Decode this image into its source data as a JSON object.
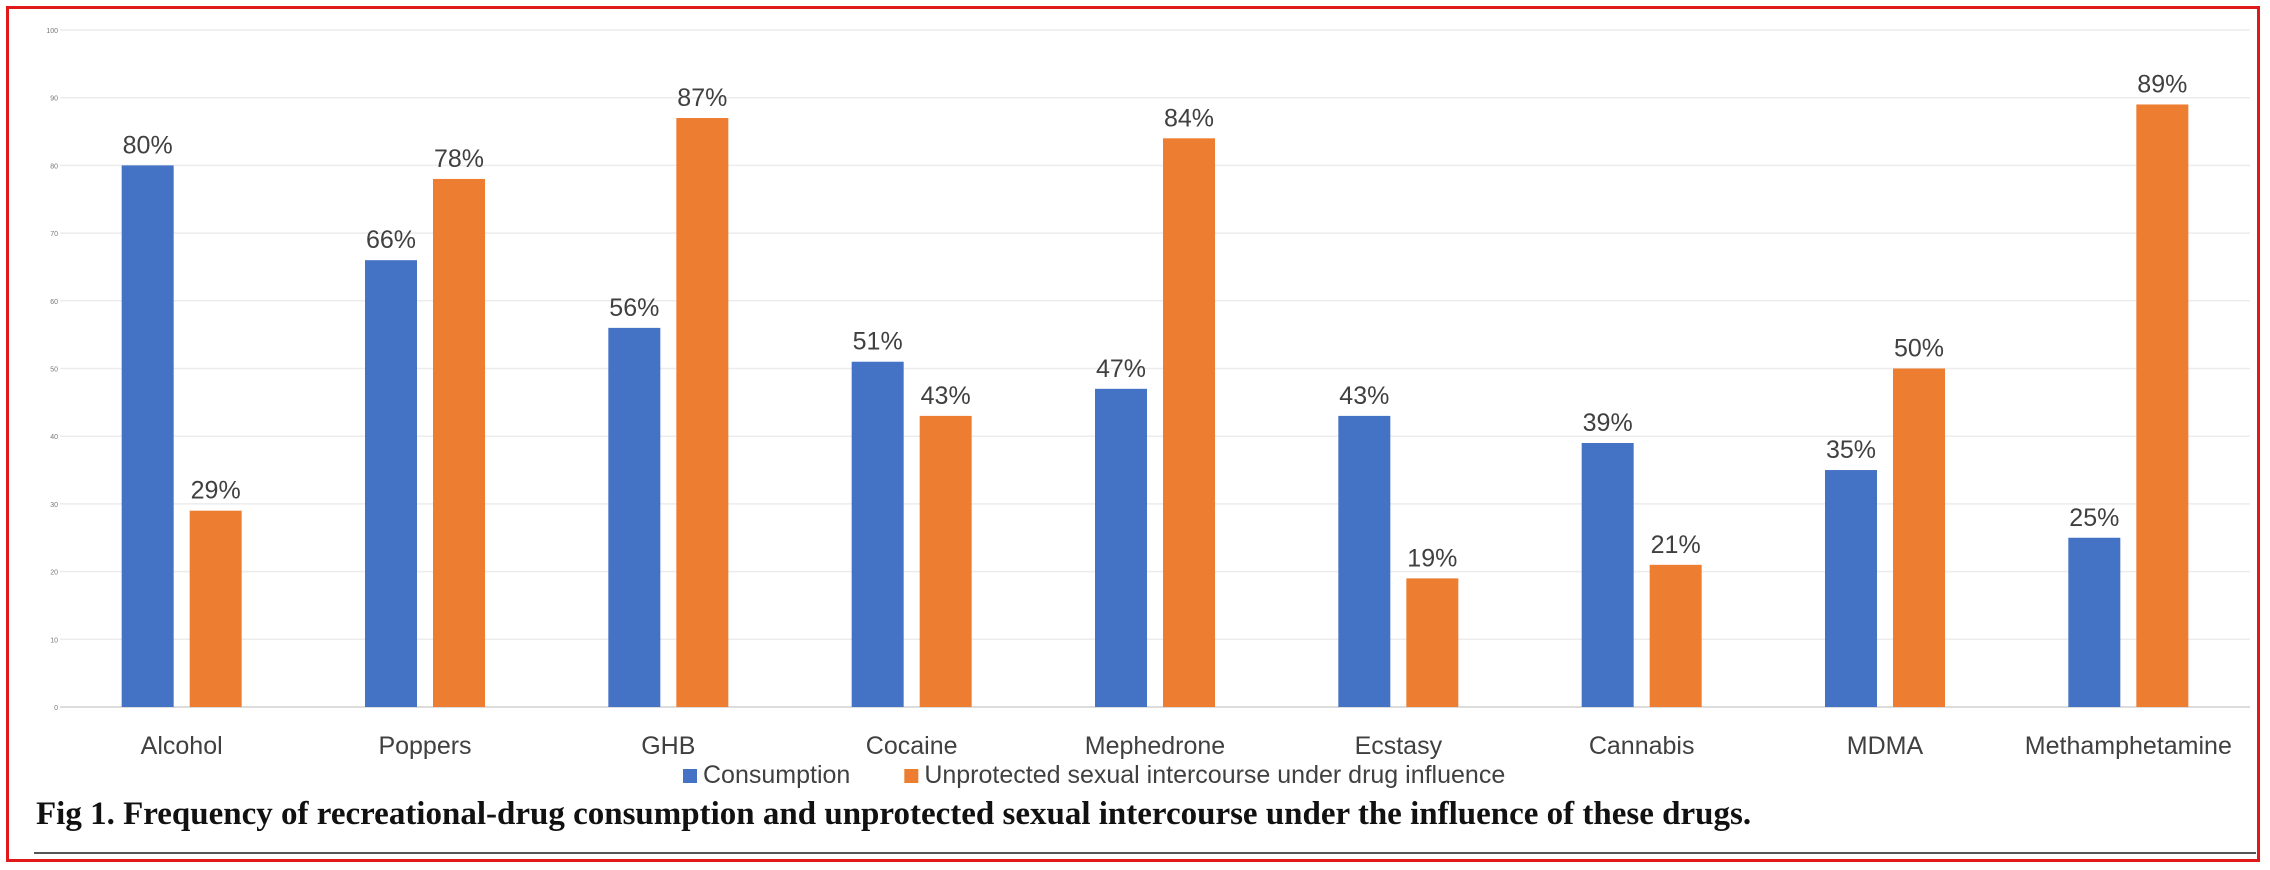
{
  "chart_data": {
    "type": "bar",
    "categories": [
      "Alcohol",
      "Poppers",
      "GHB",
      "Cocaine",
      "Mephedrone",
      "Ecstasy",
      "Cannabis",
      "MDMA",
      "Methamphetamine"
    ],
    "series": [
      {
        "name": "Consumption",
        "color": "#4472c4",
        "values": [
          80,
          66,
          56,
          51,
          47,
          43,
          39,
          35,
          25
        ]
      },
      {
        "name": "Unprotected sexual intercourse under drug influence",
        "color": "#ed7d31",
        "values": [
          29,
          78,
          87,
          43,
          84,
          19,
          21,
          50,
          89
        ]
      }
    ],
    "data_labels": [
      [
        "80%",
        "66%",
        "56%",
        "51%",
        "47%",
        "43%",
        "39%",
        "35%",
        "25%"
      ],
      [
        "29%",
        "78%",
        "87%",
        "43%",
        "84%",
        "19%",
        "21%",
        "50%",
        "89%"
      ]
    ],
    "ylim": [
      0,
      100
    ],
    "yticks": [
      0,
      10,
      20,
      30,
      40,
      50,
      60,
      70,
      80,
      90,
      100
    ],
    "grid": true,
    "legend": "bottom-center",
    "xlabel": "",
    "ylabel": ""
  },
  "caption": "Fig 1.  Frequency of recreational-drug consumption and unprotected sexual intercourse under the influence of these drugs."
}
